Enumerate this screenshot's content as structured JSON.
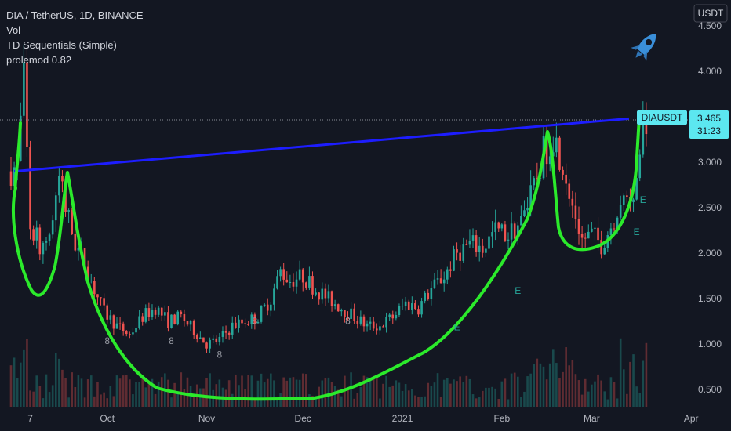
{
  "header": {
    "title": "DIA / TetherUS, 1D, BINANCE",
    "indicators": [
      "Vol",
      "TD Sequentials (Simple)",
      "prolemod 0.82"
    ]
  },
  "price_axis": {
    "currency": "USDT",
    "symbol_tag": "DIAUSDT",
    "last_price": "3.465",
    "countdown": "31:23"
  },
  "colors": {
    "background": "#131722",
    "up": "#26a69a",
    "down": "#ef5350",
    "trendline": "#1d1dff",
    "pattern": "#2bea2b",
    "price_tag": "#5ce7f0"
  },
  "icons": {
    "top_right": "rocket-icon"
  },
  "chart_data": {
    "type": "candlestick",
    "symbol": "DIA / TetherUS",
    "timeframe": "1D",
    "exchange": "BINANCE",
    "yticks": [
      "4.500",
      "4.000",
      "3.500",
      "3.000",
      "2.500",
      "2.000",
      "1.500",
      "1.000",
      "0.500"
    ],
    "ytick_values": [
      4.5,
      4.0,
      3.5,
      3.0,
      2.5,
      2.0,
      1.5,
      1.0,
      0.5
    ],
    "xticks": [
      "7",
      "Oct",
      "Nov",
      "Dec",
      "2021",
      "Feb",
      "Mar",
      "Apr"
    ],
    "xtick_dates": [
      "2020-09-07",
      "2020-10-01",
      "2020-11-01",
      "2020-12-01",
      "2021-01-01",
      "2021-02-01",
      "2021-03-01",
      "2021-04-01"
    ],
    "ylim": [
      0.3,
      4.6
    ],
    "grid": false,
    "last_price": 3.465,
    "price_path": [
      [
        "2020-09-01",
        2.9
      ],
      [
        "2020-09-04",
        2.95
      ],
      [
        "2020-09-06",
        3.9
      ],
      [
        "2020-09-08",
        2.3
      ],
      [
        "2020-09-11",
        2.1
      ],
      [
        "2020-09-14",
        2.2
      ],
      [
        "2020-09-17",
        2.8
      ],
      [
        "2020-09-19",
        2.5
      ],
      [
        "2020-09-22",
        2.1
      ],
      [
        "2020-09-25",
        1.9
      ],
      [
        "2020-09-28",
        1.6
      ],
      [
        "2020-10-01",
        1.35
      ],
      [
        "2020-10-05",
        1.2
      ],
      [
        "2020-10-09",
        1.1
      ],
      [
        "2020-10-13",
        1.3
      ],
      [
        "2020-10-17",
        1.4
      ],
      [
        "2020-10-21",
        1.25
      ],
      [
        "2020-10-25",
        1.3
      ],
      [
        "2020-10-29",
        1.15
      ],
      [
        "2020-11-02",
        1.0
      ],
      [
        "2020-11-06",
        1.05
      ],
      [
        "2020-11-10",
        1.2
      ],
      [
        "2020-11-14",
        1.25
      ],
      [
        "2020-11-18",
        1.3
      ],
      [
        "2020-11-22",
        1.5
      ],
      [
        "2020-11-25",
        1.8
      ],
      [
        "2020-11-28",
        1.7
      ],
      [
        "2020-12-02",
        1.75
      ],
      [
        "2020-12-06",
        1.6
      ],
      [
        "2020-12-10",
        1.5
      ],
      [
        "2020-12-14",
        1.4
      ],
      [
        "2020-12-18",
        1.3
      ],
      [
        "2020-12-22",
        1.2
      ],
      [
        "2020-12-26",
        1.2
      ],
      [
        "2020-12-30",
        1.3
      ],
      [
        "2021-01-03",
        1.45
      ],
      [
        "2021-01-07",
        1.4
      ],
      [
        "2021-01-11",
        1.6
      ],
      [
        "2021-01-15",
        1.75
      ],
      [
        "2021-01-19",
        2.0
      ],
      [
        "2021-01-23",
        2.1
      ],
      [
        "2021-01-27",
        2.05
      ],
      [
        "2021-01-31",
        2.25
      ],
      [
        "2021-02-04",
        2.2
      ],
      [
        "2021-02-08",
        2.35
      ],
      [
        "2021-02-12",
        2.7
      ],
      [
        "2021-02-15",
        3.1
      ],
      [
        "2021-02-18",
        3.3
      ],
      [
        "2021-02-21",
        3.0
      ],
      [
        "2021-02-24",
        2.55
      ],
      [
        "2021-02-27",
        2.15
      ],
      [
        "2021-03-02",
        2.2
      ],
      [
        "2021-03-05",
        2.1
      ],
      [
        "2021-03-08",
        2.3
      ],
      [
        "2021-03-11",
        2.6
      ],
      [
        "2021-03-14",
        2.65
      ],
      [
        "2021-03-16",
        2.8
      ],
      [
        "2021-03-18",
        3.465
      ]
    ],
    "trendline": [
      [
        "2020-09-01",
        2.9
      ],
      [
        "2021-03-18",
        3.48
      ]
    ],
    "td_labels": [
      {
        "date": "2020-10-01",
        "price": 1.0,
        "text": "8",
        "position": "below"
      },
      {
        "date": "2020-10-21",
        "price": 1.0,
        "text": "8",
        "position": "below"
      },
      {
        "date": "2020-11-05",
        "price": 0.85,
        "text": "8",
        "position": "below"
      },
      {
        "date": "2020-11-16",
        "price": 1.22,
        "text": "8",
        "position": "below"
      },
      {
        "date": "2020-12-15",
        "price": 1.22,
        "text": "8",
        "position": "below"
      },
      {
        "date": "2021-01-18",
        "price": 1.15,
        "text": "E",
        "position": "below"
      },
      {
        "date": "2021-02-06",
        "price": 1.55,
        "text": "E",
        "position": "below"
      },
      {
        "date": "2021-03-17",
        "price": 2.55,
        "text": "E",
        "position": "below"
      },
      {
        "date": "2021-03-15",
        "price": 2.2,
        "text": "E",
        "position": "below"
      }
    ]
  }
}
